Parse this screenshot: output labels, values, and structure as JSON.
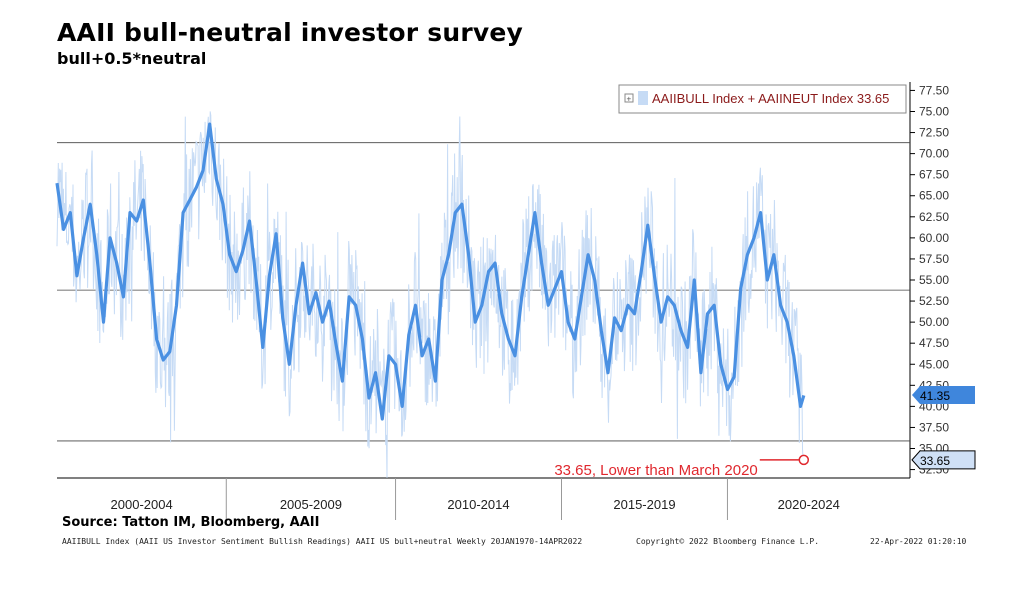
{
  "title": "AAII bull-neutral investor survey",
  "subtitle": "bull+0.5*neutral",
  "source": "Source: Tatton IM, Bloomberg, AAII",
  "footer": {
    "left": "AAIIBULL Index (AAII US Investor Sentiment Bullish Readings) AAII US bull+neutral  Weekly 20JAN1970-14APR2022",
    "middle": "Copyright© 2022 Bloomberg Finance L.P.",
    "right": "22-Apr-2022 01:20:10"
  },
  "chart_data": {
    "type": "line",
    "ylim": [
      31.5,
      78.5
    ],
    "yticks": [
      32.5,
      35.0,
      37.5,
      40.0,
      42.5,
      45.0,
      47.5,
      50.0,
      52.5,
      55.0,
      57.5,
      60.0,
      62.5,
      65.0,
      67.5,
      70.0,
      72.5,
      75.0,
      77.5
    ],
    "ytick_labels": [
      "32.50",
      "35.00",
      "37.50",
      "40.00",
      "42.50",
      "45.00",
      "47.50",
      "50.00",
      "52.50",
      "55.00",
      "57.50",
      "60.00",
      "62.50",
      "65.00",
      "67.50",
      "70.00",
      "72.50",
      "75.00",
      "77.50"
    ],
    "xlim": [
      1999.8,
      2025.5
    ],
    "categories": [
      "2000-2004",
      "2005-2009",
      "2010-2014",
      "2015-2019",
      "2020-2024"
    ],
    "category_dividers": [
      2004.9,
      2010.0,
      2015.0,
      2020.0
    ],
    "hlines": [
      71.3,
      53.8,
      35.9
    ],
    "legend": "AAIIBULL Index + AAIINEUT Index 33.65",
    "last_value_tags": [
      {
        "label": "41.35",
        "value": 41.35,
        "color": "#3f86dc"
      },
      {
        "label": "33.65",
        "value": 33.65,
        "color": "#cfe0f6"
      }
    ],
    "annotation": {
      "text": "33.65, Lower than March 2020",
      "x": 2022.3,
      "y": 33.65
    },
    "series": [
      {
        "role": "moving-average",
        "color": "#4a90e2",
        "x": [
          1999.8,
          2000.0,
          2000.2,
          2000.4,
          2000.6,
          2000.8,
          2001.0,
          2001.2,
          2001.4,
          2001.6,
          2001.8,
          2002.0,
          2002.2,
          2002.4,
          2002.6,
          2002.8,
          2003.0,
          2003.2,
          2003.4,
          2003.6,
          2003.8,
          2004.0,
          2004.2,
          2004.4,
          2004.6,
          2004.8,
          2005.0,
          2005.2,
          2005.4,
          2005.6,
          2005.8,
          2006.0,
          2006.2,
          2006.4,
          2006.6,
          2006.8,
          2007.0,
          2007.2,
          2007.4,
          2007.6,
          2007.8,
          2008.0,
          2008.2,
          2008.4,
          2008.6,
          2008.8,
          2009.0,
          2009.2,
          2009.4,
          2009.6,
          2009.8,
          2010.0,
          2010.2,
          2010.4,
          2010.6,
          2010.8,
          2011.0,
          2011.2,
          2011.4,
          2011.6,
          2011.8,
          2012.0,
          2012.2,
          2012.4,
          2012.6,
          2012.8,
          2013.0,
          2013.2,
          2013.4,
          2013.6,
          2013.8,
          2014.0,
          2014.2,
          2014.4,
          2014.6,
          2014.8,
          2015.0,
          2015.2,
          2015.4,
          2015.6,
          2015.8,
          2016.0,
          2016.2,
          2016.4,
          2016.6,
          2016.8,
          2017.0,
          2017.2,
          2017.4,
          2017.6,
          2017.8,
          2018.0,
          2018.2,
          2018.4,
          2018.6,
          2018.8,
          2019.0,
          2019.2,
          2019.4,
          2019.6,
          2019.8,
          2020.0,
          2020.2,
          2020.4,
          2020.6,
          2020.8,
          2021.0,
          2021.2,
          2021.4,
          2021.6,
          2021.8,
          2022.0,
          2022.2,
          2022.3
        ],
        "y": [
          66.5,
          61.0,
          63.0,
          55.5,
          60.0,
          64.0,
          58.0,
          50.0,
          60.0,
          57.0,
          53.0,
          63.0,
          62.0,
          64.5,
          57.0,
          48.0,
          45.5,
          46.5,
          52.0,
          63.0,
          64.5,
          66.0,
          68.0,
          73.5,
          67.0,
          64.0,
          58.0,
          56.0,
          58.5,
          62.0,
          55.0,
          47.0,
          55.5,
          60.5,
          50.5,
          45.0,
          52.0,
          57.0,
          51.0,
          53.5,
          50.0,
          52.5,
          47.5,
          43.0,
          53.0,
          52.0,
          48.0,
          41.0,
          44.0,
          38.5,
          46.0,
          45.0,
          40.0,
          48.5,
          52.0,
          46.0,
          48.0,
          43.0,
          55.0,
          58.0,
          63.0,
          64.0,
          58.0,
          50.0,
          52.0,
          56.0,
          57.0,
          51.0,
          48.0,
          46.0,
          53.0,
          58.0,
          63.0,
          57.0,
          52.0,
          54.0,
          56.0,
          50.0,
          48.0,
          53.0,
          58.0,
          55.0,
          49.0,
          44.0,
          50.5,
          49.0,
          52.0,
          51.0,
          56.0,
          61.5,
          55.5,
          50.0,
          53.0,
          52.0,
          49.0,
          47.0,
          55.0,
          44.0,
          51.0,
          52.0,
          45.0,
          42.0,
          43.5,
          54.0,
          58.0,
          60.0,
          63.0,
          55.0,
          58.0,
          52.0,
          50.0,
          46.0,
          40.0,
          41.3
        ]
      }
    ]
  }
}
